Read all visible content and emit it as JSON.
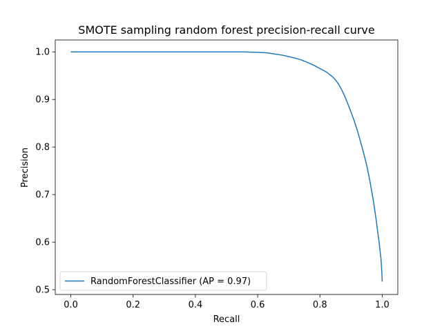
{
  "chart_data": {
    "type": "line",
    "title": "SMOTE sampling random forest precision-recall curve",
    "xlabel": "Recall",
    "ylabel": "Precision",
    "xlim": [
      -0.05,
      1.05
    ],
    "ylim": [
      0.49,
      1.025
    ],
    "xticks": [
      0.0,
      0.2,
      0.4,
      0.6,
      0.8,
      1.0
    ],
    "xtick_labels": [
      "0.0",
      "0.2",
      "0.4",
      "0.6",
      "0.8",
      "1.0"
    ],
    "yticks": [
      0.5,
      0.6,
      0.7,
      0.8,
      0.9,
      1.0
    ],
    "ytick_labels": [
      "0.5",
      "0.6",
      "0.7",
      "0.8",
      "0.9",
      "1.0"
    ],
    "grid": false,
    "legend_position": "lower-left",
    "series": [
      {
        "name": "RandomForestClassifier (AP = 0.97)",
        "color": "#1f77b4",
        "x": [
          0.0,
          0.1,
          0.2,
          0.3,
          0.4,
          0.5,
          0.55,
          0.6,
          0.63,
          0.65,
          0.68,
          0.7,
          0.72,
          0.74,
          0.76,
          0.78,
          0.8,
          0.82,
          0.84,
          0.85,
          0.86,
          0.87,
          0.88,
          0.89,
          0.9,
          0.91,
          0.92,
          0.93,
          0.94,
          0.95,
          0.96,
          0.97,
          0.975,
          0.98,
          0.985,
          0.99,
          0.993,
          0.996,
          0.998,
          1.0
        ],
        "y": [
          1.0,
          1.0,
          1.0,
          1.0,
          1.0,
          1.0,
          1.0,
          0.999,
          0.998,
          0.996,
          0.993,
          0.99,
          0.987,
          0.983,
          0.978,
          0.972,
          0.965,
          0.958,
          0.948,
          0.941,
          0.932,
          0.92,
          0.906,
          0.89,
          0.873,
          0.855,
          0.835,
          0.812,
          0.788,
          0.762,
          0.73,
          0.693,
          0.672,
          0.649,
          0.624,
          0.6,
          0.582,
          0.565,
          0.545,
          0.517
        ]
      }
    ]
  }
}
